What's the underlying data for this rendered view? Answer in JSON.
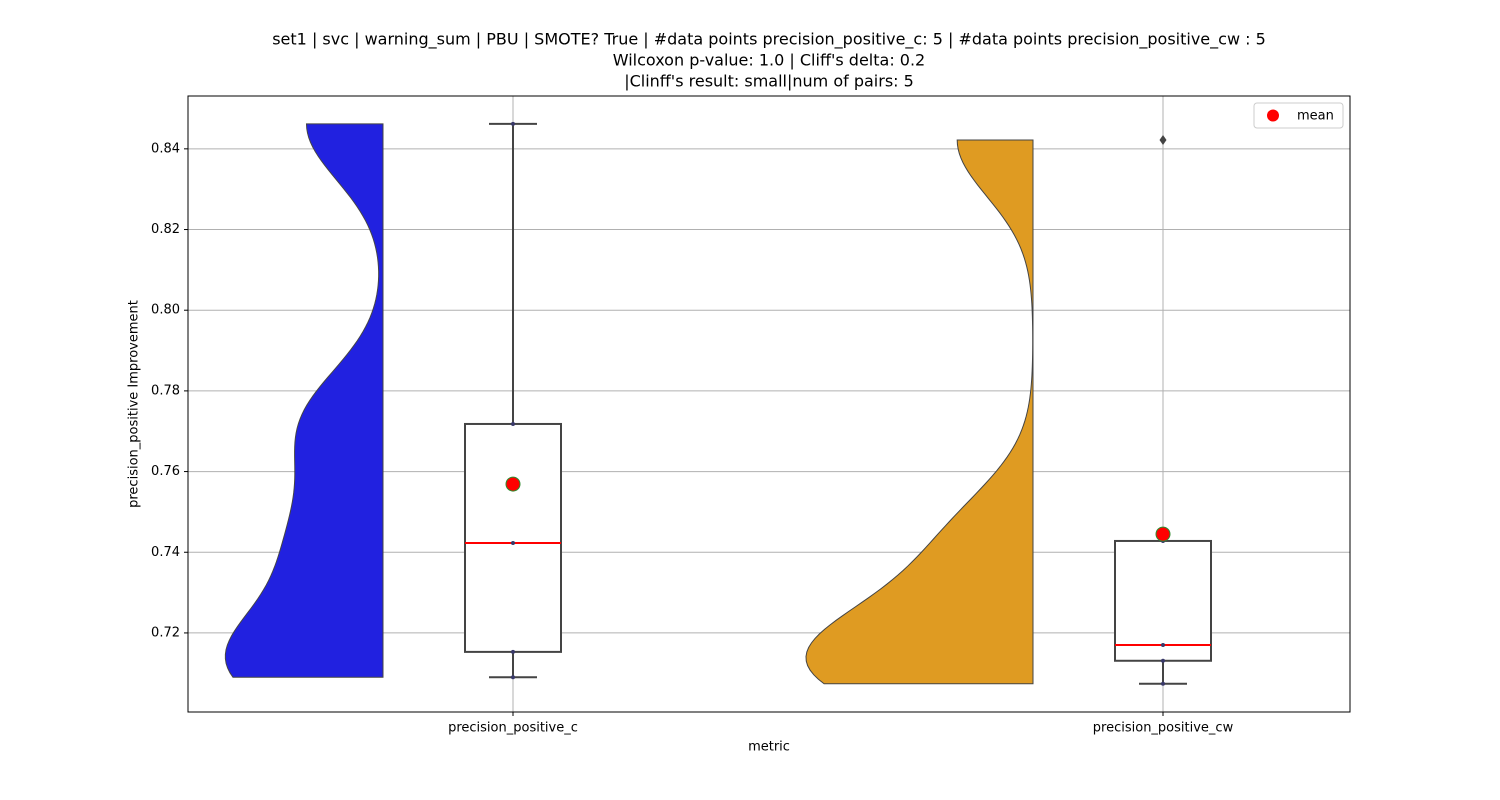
{
  "chart_data": {
    "type": "violin-box",
    "title": [
      "set1 | svc | warning_sum | PBU | SMOTE? True | #data points precision_positive_c: 5 | #data points precision_positive_cw : 5",
      "Wilcoxon p-value: 1.0 | Cliff's delta: 0.2",
      "|Clinff's result: small|num of pairs: 5"
    ],
    "xlabel": "metric",
    "ylabel": "precision_positive Improvement",
    "legend_label": "mean",
    "legend_loc": "upper right",
    "grid": true,
    "mean_color": "#ff0000",
    "median_color": "#ff0000",
    "series": [
      {
        "name": "precision_positive_c",
        "color": "#2121e0",
        "values": [
          0.709,
          0.7153,
          0.7423,
          0.7718,
          0.8462
        ],
        "mean": 0.7569
      },
      {
        "name": "precision_positive_cw",
        "color": "#df9b22",
        "values": [
          0.7074,
          0.7131,
          0.717,
          0.7428,
          0.8422
        ],
        "mean": 0.7445
      }
    ],
    "ylim": [
      0.7004,
      0.8531
    ],
    "yticks": [
      0.72,
      0.74,
      0.76,
      0.78,
      {
        "value": 0.8,
        "label": "0.80"
      },
      0.82,
      0.84
    ]
  }
}
